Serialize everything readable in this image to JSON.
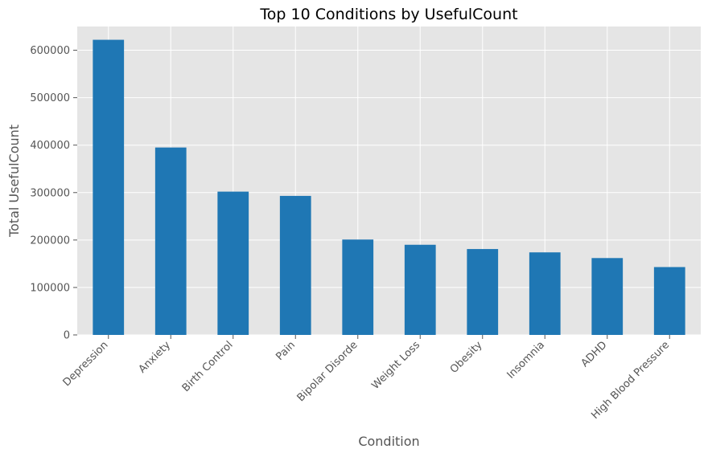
{
  "chart_data": {
    "type": "bar",
    "title": "Top 10 Conditions by UsefulCount",
    "xlabel": "Condition",
    "ylabel": "Total UsefulCount",
    "categories": [
      "Depression",
      "Anxiety",
      "Birth Control",
      "Pain",
      "Bipolar Disorde",
      "Weight Loss",
      "Obesity",
      "Insomnia",
      "ADHD",
      "High Blood Pressure"
    ],
    "values": [
      622000,
      395000,
      302000,
      293000,
      201000,
      190000,
      181000,
      174000,
      162000,
      143000
    ],
    "ylim": [
      0,
      650000
    ],
    "yticks": [
      0,
      100000,
      200000,
      300000,
      400000,
      500000,
      600000
    ],
    "ytick_labels": [
      "0",
      "100000",
      "200000",
      "300000",
      "400000",
      "500000",
      "600000"
    ],
    "grid": true,
    "colors": {
      "bar": "#1f77b4",
      "plot_background": "#e5e5e5",
      "grid": "#ffffff"
    }
  }
}
